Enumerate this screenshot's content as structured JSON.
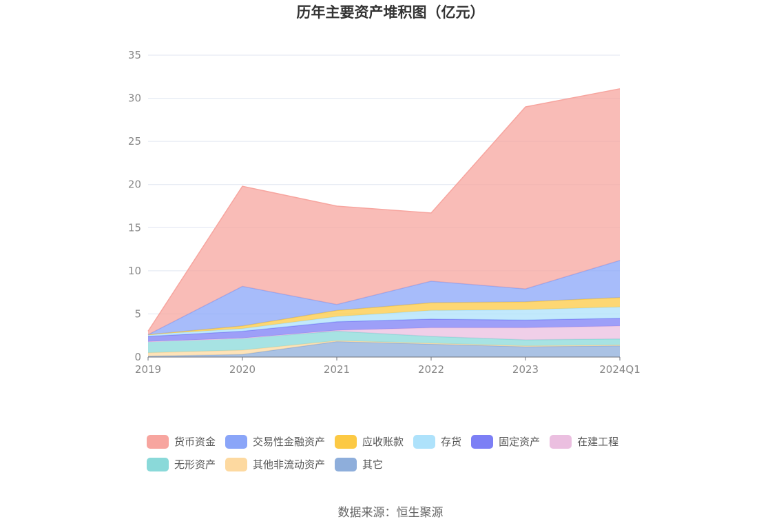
{
  "chart_data": {
    "type": "area",
    "stacked": true,
    "title": "历年主要资产堆积图（亿元）",
    "x": [
      "2019",
      "2020",
      "2021",
      "2022",
      "2023",
      "2024Q1"
    ],
    "ylim": [
      0,
      35
    ],
    "yticks": [
      0,
      5,
      10,
      15,
      20,
      25,
      30,
      35
    ],
    "grid": true,
    "legend_position": "bottom",
    "series": [
      {
        "name": "其它",
        "color": "#8eaedb",
        "values": [
          0.1,
          0.3,
          1.8,
          1.5,
          1.2,
          1.3
        ]
      },
      {
        "name": "其他非流动资产",
        "color": "#fdd9a0",
        "values": [
          0.4,
          0.5,
          0.1,
          0.1,
          0.1,
          0.1
        ]
      },
      {
        "name": "无形资产",
        "color": "#8ad9d9",
        "values": [
          1.3,
          1.4,
          1.1,
          0.8,
          0.7,
          0.7
        ]
      },
      {
        "name": "在建工程",
        "color": "#ebbfe0",
        "values": [
          0.0,
          0.0,
          0.1,
          1.0,
          1.4,
          1.5
        ]
      },
      {
        "name": "固定资产",
        "color": "#7c7ff5",
        "values": [
          0.6,
          0.8,
          1.0,
          1.0,
          0.9,
          0.9
        ]
      },
      {
        "name": "存货",
        "color": "#aee2fb",
        "values": [
          0.2,
          0.3,
          0.6,
          1.0,
          1.2,
          1.3
        ]
      },
      {
        "name": "应收账款",
        "color": "#fcc944",
        "values": [
          0.0,
          0.3,
          0.7,
          0.9,
          0.9,
          1.1
        ]
      },
      {
        "name": "交易性金融资产",
        "color": "#8aa5f8",
        "values": [
          0.0,
          4.6,
          0.7,
          2.5,
          1.5,
          4.3
        ]
      },
      {
        "name": "货币资金",
        "color": "#f7a59f",
        "values": [
          0.4,
          11.6,
          11.4,
          7.9,
          21.1,
          19.9
        ]
      }
    ]
  },
  "legend_order": [
    "货币资金",
    "交易性金融资产",
    "应收账款",
    "存货",
    "固定资产",
    "在建工程",
    "无形资产",
    "其他非流动资产",
    "其它"
  ],
  "source": "数据来源：恒生聚源"
}
